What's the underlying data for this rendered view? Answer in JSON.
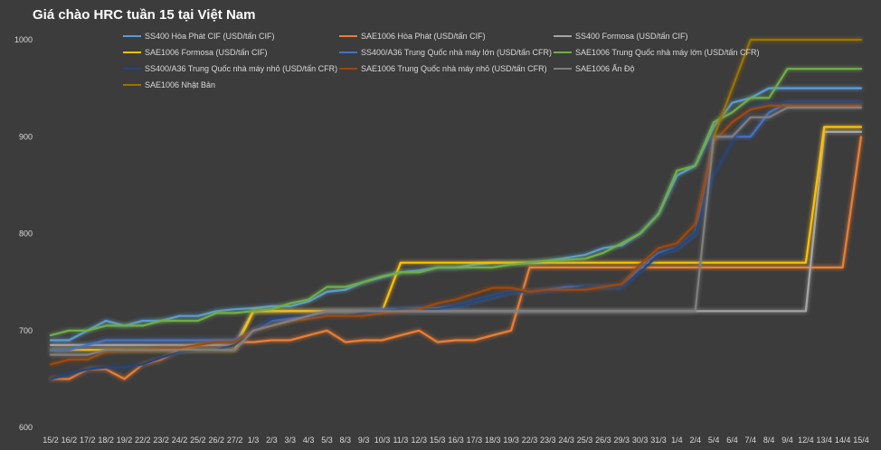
{
  "chart_data": {
    "type": "line",
    "title": "Giá chào HRC tuần 15 tại Việt Nam",
    "xlabel": "",
    "ylabel": "",
    "ylim": [
      600,
      1000
    ],
    "yticks": [
      600,
      700,
      800,
      900,
      1000
    ],
    "grid": false,
    "legend_position": "top",
    "x": [
      "15/2",
      "16/2",
      "17/2",
      "18/2",
      "19/2",
      "22/2",
      "23/2",
      "24/2",
      "25/2",
      "26/2",
      "27/2",
      "1/3",
      "2/3",
      "3/3",
      "4/3",
      "5/3",
      "8/3",
      "9/3",
      "10/3",
      "11/3",
      "12/3",
      "15/3",
      "16/3",
      "17/3",
      "18/3",
      "19/3",
      "22/3",
      "23/3",
      "24/3",
      "25/3",
      "26/3",
      "29/3",
      "30/3",
      "31/3",
      "1/4",
      "2/4",
      "5/4",
      "6/4",
      "7/4",
      "8/4",
      "9/4",
      "12/4",
      "13/4",
      "14/4",
      "15/4"
    ],
    "series": [
      {
        "name": "SS400 Hòa Phát CIF (USD/tấn CIF)",
        "color": "#5b9bd5",
        "values": [
          690,
          690,
          700,
          710,
          705,
          710,
          710,
          715,
          715,
          720,
          722,
          723,
          725,
          725,
          730,
          740,
          742,
          750,
          755,
          760,
          762,
          765,
          765,
          768,
          770,
          770,
          770,
          772,
          775,
          778,
          785,
          788,
          800,
          820,
          860,
          870,
          910,
          935,
          940,
          950,
          950,
          950,
          950,
          950,
          950
        ]
      },
      {
        "name": "SAE1006 Hòa Phát (USD/tấn CIF)",
        "color": "#ed7d31",
        "values": [
          650,
          650,
          660,
          660,
          650,
          665,
          670,
          680,
          685,
          688,
          688,
          688,
          690,
          690,
          695,
          700,
          688,
          690,
          690,
          695,
          700,
          688,
          690,
          690,
          695,
          700,
          765,
          765,
          765,
          765,
          765,
          765,
          765,
          765,
          765,
          765,
          765,
          765,
          765,
          765,
          765,
          765,
          765,
          765,
          900
        ]
      },
      {
        "name": "SS400 Formosa (USD/tấn CIF)",
        "color": "#a5a5a5",
        "values": [
          685,
          685,
          685,
          685,
          685,
          685,
          685,
          685,
          685,
          685,
          685,
          720,
          720,
          720,
          720,
          720,
          720,
          720,
          720,
          720,
          720,
          720,
          720,
          720,
          720,
          720,
          720,
          720,
          720,
          720,
          720,
          720,
          720,
          720,
          720,
          720,
          720,
          720,
          720,
          720,
          720,
          720,
          905,
          905,
          905
        ]
      },
      {
        "name": "SAE1006 Formosa (USD/tấn CIF)",
        "color": "#ffc000",
        "values": [
          680,
          680,
          680,
          680,
          680,
          680,
          680,
          680,
          680,
          680,
          680,
          720,
          720,
          720,
          720,
          720,
          720,
          720,
          720,
          770,
          770,
          770,
          770,
          770,
          770,
          770,
          770,
          770,
          770,
          770,
          770,
          770,
          770,
          770,
          770,
          770,
          770,
          770,
          770,
          770,
          770,
          770,
          910,
          910,
          910
        ]
      },
      {
        "name": "SS400/A36 Trung Quốc nhà máy lớn (USD/tấn CFR)",
        "color": "#4472c4",
        "values": [
          680,
          680,
          685,
          690,
          690,
          690,
          690,
          690,
          690,
          690,
          690,
          700,
          710,
          712,
          715,
          720,
          720,
          720,
          722,
          722,
          723,
          723,
          725,
          730,
          735,
          740,
          740,
          742,
          745,
          745,
          745,
          745,
          765,
          780,
          785,
          800,
          900,
          900,
          900,
          925,
          935,
          935,
          935,
          935,
          935
        ]
      },
      {
        "name": "SAE1006 Trung Quốc nhà máy lớn  (USD/tấn CFR)",
        "color": "#70ad47",
        "values": [
          695,
          700,
          700,
          705,
          705,
          705,
          710,
          710,
          710,
          718,
          718,
          720,
          722,
          728,
          732,
          745,
          745,
          750,
          756,
          760,
          760,
          765,
          765,
          765,
          765,
          768,
          770,
          772,
          773,
          774,
          780,
          790,
          800,
          820,
          865,
          870,
          915,
          925,
          940,
          940,
          970,
          970,
          970,
          970,
          970
        ]
      },
      {
        "name": "SS400/A36 Trung Quốc nhà máy nhỏ  (USD/tấn CFR)",
        "color": "#264478",
        "values": [
          650,
          655,
          660,
          662,
          662,
          665,
          672,
          678,
          680,
          680,
          685,
          700,
          712,
          715,
          715,
          715,
          715,
          718,
          720,
          722,
          722,
          722,
          725,
          730,
          735,
          740,
          740,
          740,
          742,
          745,
          745,
          745,
          760,
          778,
          785,
          800,
          860,
          895,
          930,
          935,
          935,
          935,
          935,
          935,
          935
        ]
      },
      {
        "name": "SAE1006 Trung Quốc nhà máy nhỏ (USD/tấn CFR)",
        "color": "#9e480e",
        "values": [
          665,
          670,
          670,
          678,
          680,
          680,
          682,
          682,
          685,
          688,
          688,
          700,
          705,
          710,
          712,
          715,
          715,
          715,
          718,
          720,
          722,
          728,
          732,
          738,
          744,
          744,
          740,
          742,
          742,
          742,
          745,
          748,
          768,
          785,
          790,
          810,
          895,
          915,
          928,
          932,
          932,
          932,
          932,
          932,
          932
        ]
      },
      {
        "name": "SAE1006 Ấn Độ",
        "color": "#7f7f7f",
        "values": [
          675,
          675,
          675,
          680,
          680,
          680,
          680,
          680,
          680,
          680,
          680,
          700,
          705,
          710,
          715,
          720,
          720,
          720,
          720,
          720,
          720,
          720,
          720,
          720,
          720,
          720,
          720,
          720,
          720,
          720,
          720,
          720,
          720,
          720,
          720,
          720,
          900,
          900,
          920,
          920,
          930,
          930,
          930,
          930,
          930
        ]
      },
      {
        "name": "SAE1006 Nhật Bản",
        "color": "#997300",
        "values": [
          null,
          null,
          null,
          null,
          null,
          null,
          null,
          null,
          null,
          null,
          null,
          null,
          null,
          null,
          null,
          null,
          null,
          null,
          null,
          null,
          null,
          null,
          null,
          null,
          null,
          null,
          null,
          null,
          null,
          null,
          null,
          null,
          null,
          null,
          null,
          null,
          900,
          950,
          1000,
          1000,
          1000,
          1000,
          1000,
          1000,
          1000
        ]
      }
    ]
  }
}
